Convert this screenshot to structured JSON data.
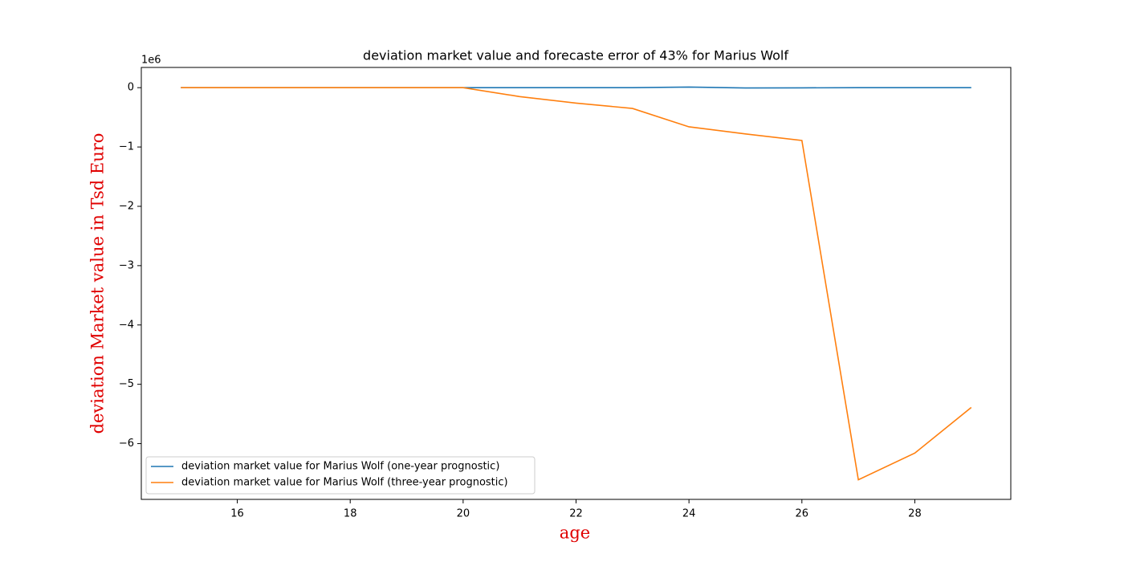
{
  "chart_data": {
    "type": "line",
    "title": "deviation market value and forecaste error of 43% for Marius Wolf",
    "x_label": "age",
    "y_label": "deviation Market value in Tsd Euro",
    "y_offset_label": "1e6",
    "x": [
      15,
      16,
      17,
      18,
      19,
      20,
      21,
      22,
      23,
      24,
      25,
      26,
      27,
      28,
      29
    ],
    "series": [
      {
        "name": "deviation market value for Marius Wolf (one-year prognostic)",
        "color": "#1f77b4",
        "values": [
          0,
          0,
          0,
          0,
          0,
          0,
          0,
          0,
          0,
          10000,
          -5000,
          -3000,
          0,
          0,
          0
        ]
      },
      {
        "name": "deviation market value for Marius Wolf (three-year prognostic)",
        "color": "#ff7f0e",
        "values": [
          0,
          0,
          0,
          0,
          0,
          0,
          -150000,
          -260000,
          -350000,
          -660000,
          -780000,
          -890000,
          -6610000,
          -6160000,
          -5390000
        ]
      }
    ],
    "xlim": [
      14.3,
      29.7
    ],
    "xticks": [
      16,
      18,
      20,
      22,
      24,
      26,
      28
    ],
    "ylim": [
      -6940000,
      341000
    ],
    "yticks": [
      {
        "value": -6000000,
        "label": "−6"
      },
      {
        "value": -5000000,
        "label": "−5"
      },
      {
        "value": -4000000,
        "label": "−4"
      },
      {
        "value": -3000000,
        "label": "−3"
      },
      {
        "value": -2000000,
        "label": "−2"
      },
      {
        "value": -1000000,
        "label": "−1"
      },
      {
        "value": 0,
        "label": "0"
      }
    ],
    "grid": false,
    "legend": "lower left"
  }
}
